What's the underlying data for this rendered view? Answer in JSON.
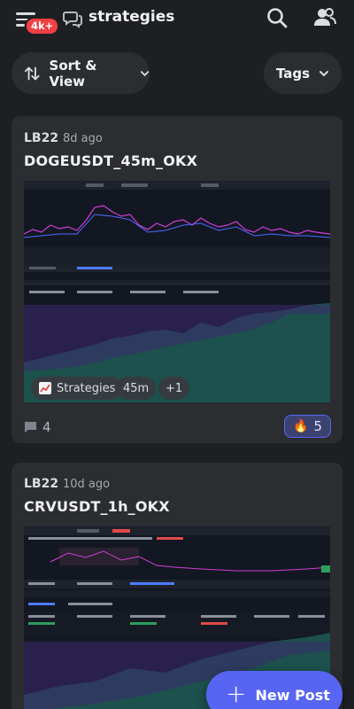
{
  "header": {
    "notification_badge": "4k+",
    "title": "strategies",
    "icons": {
      "menu": "hamburger-icon",
      "forum": "forum-channel-icon",
      "search": "search-icon",
      "members": "members-icon"
    }
  },
  "filters": {
    "sort_label": "Sort & View",
    "tags_label": "Tags"
  },
  "posts": [
    {
      "author": "LB22",
      "time_ago": "8d ago",
      "title": "DOGEUSDT_45m_OKX",
      "tags": [
        {
          "icon": "chart-increasing-icon",
          "label": "Strategies"
        },
        {
          "label": "45m"
        },
        {
          "label": "+1"
        }
      ],
      "reply_count": "4",
      "reaction": {
        "emoji": "🔥",
        "count": "5"
      }
    },
    {
      "author": "LB22",
      "time_ago": "10d ago",
      "title": "CRVUSDT_1h_OKX"
    }
  ],
  "new_post_label": "New Post",
  "colors": {
    "accent": "#5865f2",
    "badge": "#f23f42",
    "card": "#2b2d31",
    "background": "#1e1f22"
  }
}
